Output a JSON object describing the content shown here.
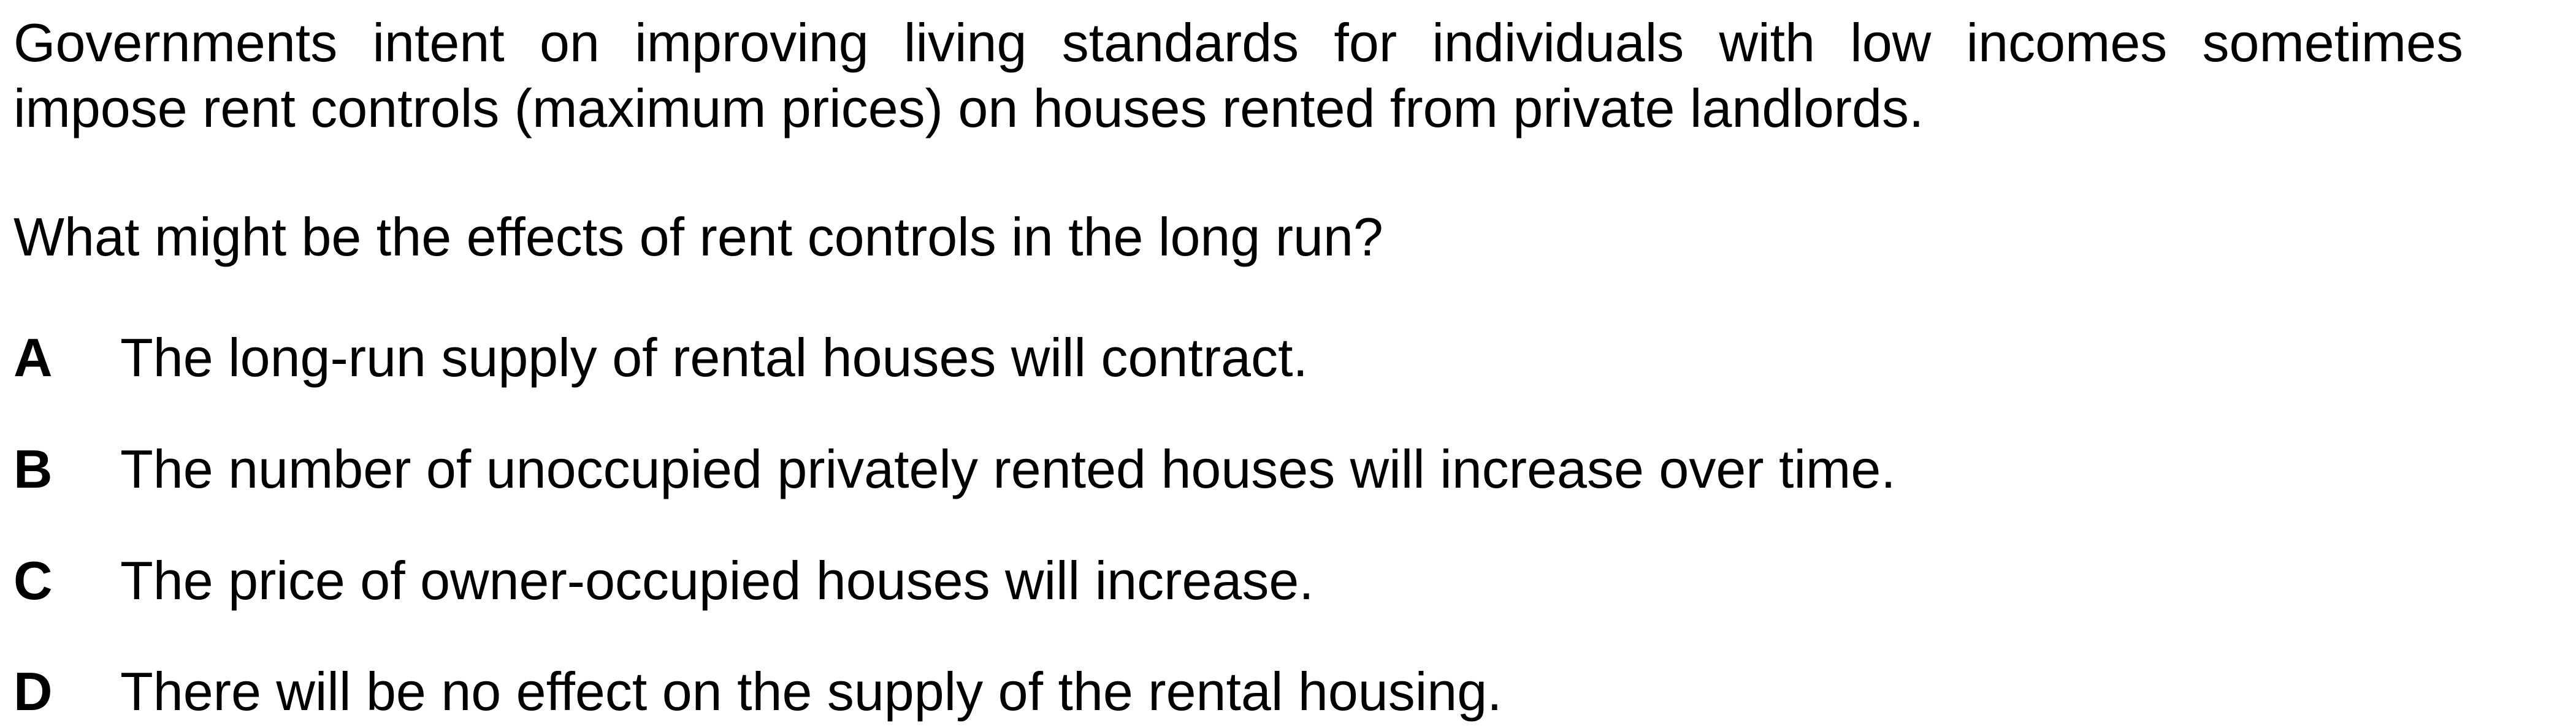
{
  "stem": {
    "line1": "Governments intent on improving living standards for individuals with low incomes sometimes",
    "line2": "impose rent controls (maximum prices) on houses rented from private landlords."
  },
  "question": "What might be the effects of rent controls in the long run?",
  "options": [
    {
      "letter": "A",
      "text": "The long-run supply of rental houses will contract."
    },
    {
      "letter": "B",
      "text": "The number of unoccupied privately rented houses will increase over time."
    },
    {
      "letter": "C",
      "text": "The price of owner-occupied houses will increase."
    },
    {
      "letter": "D",
      "text": "There will be no effect on the supply of the rental housing."
    }
  ]
}
